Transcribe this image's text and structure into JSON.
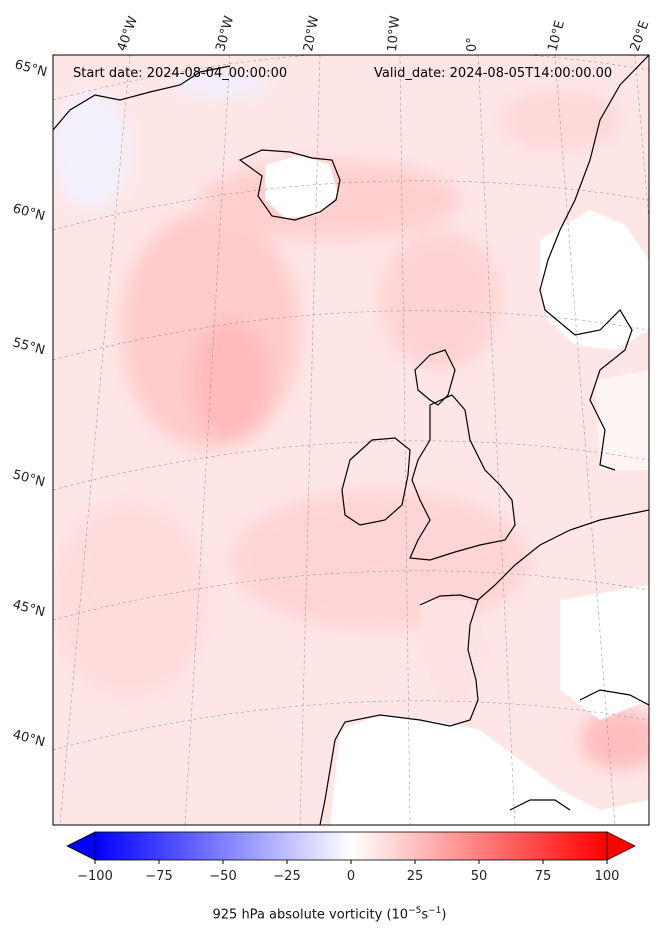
{
  "header": {
    "start_date": "Start date: 2024-08-04_00:00:00",
    "valid_date": "Valid_date: 2024-08-05T14:00:00.00"
  },
  "map": {
    "lon_labels": [
      "40°W",
      "30°W",
      "20°W",
      "10°W",
      "0°",
      "10°E",
      "20°E"
    ],
    "lat_labels": [
      "65°N",
      "60°N",
      "55°N",
      "50°N",
      "45°N",
      "40°N"
    ],
    "shading": "red-dominant vorticity field, white over land"
  },
  "colorbar": {
    "ticks": [
      "−100",
      "−75",
      "−50",
      "−25",
      "0",
      "25",
      "50",
      "75",
      "100"
    ],
    "min": -100,
    "max": 100,
    "label_prefix": "925 hPa absolute vorticity (10",
    "label_exp1": "−5",
    "label_mid": "s",
    "label_exp2": "−1",
    "label_suffix": ")",
    "colors": {
      "neg": "#0000ff",
      "zero": "#ffffff",
      "pos": "#ff0000"
    }
  }
}
